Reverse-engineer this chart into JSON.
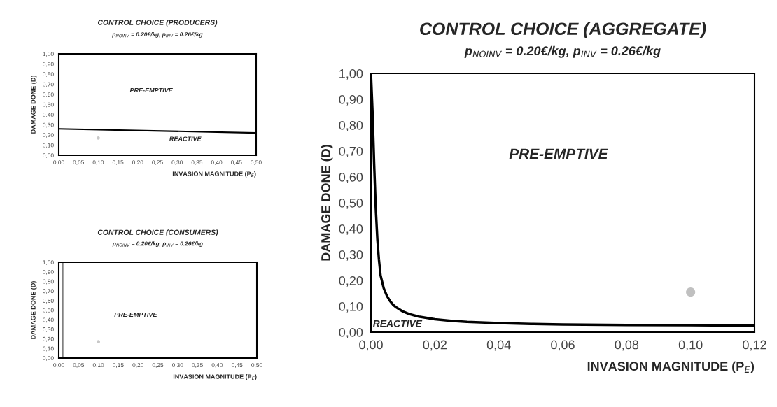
{
  "chart_data": [
    {
      "type": "line",
      "title": "CONTROL CHOICE (PRODUCERS)",
      "subtitle": "p$_{NOINV}$ = 0.20€/kg, p$_{INV}$ = 0.26€/kg",
      "xlabel": "INVASION MAGNITUDE (P$_{E}$)",
      "ylabel": "DAMAGE DONE (D)",
      "series": [
        {
          "color": "#000000",
          "x": [
            0.0,
            0.5
          ],
          "values": [
            0.26,
            0.22
          ]
        },
        {
          "type": "scatter",
          "color": "#c8c8c8",
          "x": [
            0.1
          ],
          "values": [
            0.17
          ]
        }
      ],
      "annotations": [
        "PRE-EMPTIVE",
        "REACTIVE"
      ],
      "xlim": [
        0,
        0.5
      ],
      "ylim": [
        0,
        1
      ],
      "xticks": [
        {
          "value": 0,
          "label": "0,00"
        },
        {
          "value": 0.05,
          "label": "0,05"
        },
        {
          "value": 0.1,
          "label": "0,10"
        },
        {
          "value": 0.15,
          "label": "0,15"
        },
        {
          "value": 0.2,
          "label": "0,20"
        },
        {
          "value": 0.25,
          "label": "0,25"
        },
        {
          "value": 0.3,
          "label": "0,30"
        },
        {
          "value": 0.35,
          "label": "0,35"
        },
        {
          "value": 0.4,
          "label": "0,40"
        },
        {
          "value": 0.45,
          "label": "0,45"
        },
        {
          "value": 0.5,
          "label": "0,50"
        }
      ],
      "yticks": [
        {
          "value": 0,
          "label": "0,00"
        },
        {
          "value": 0.1,
          "label": "0,10"
        },
        {
          "value": 0.2,
          "label": "0,20"
        },
        {
          "value": 0.3,
          "label": "0,30"
        },
        {
          "value": 0.4,
          "label": "0,40"
        },
        {
          "value": 0.5,
          "label": "0,50"
        },
        {
          "value": 0.6,
          "label": "0,60"
        },
        {
          "value": 0.7,
          "label": "0,70"
        },
        {
          "value": 0.8,
          "label": "0,80"
        },
        {
          "value": 0.9,
          "label": "0,90"
        },
        {
          "value": 1,
          "label": "1,00"
        }
      ],
      "grid": false
    },
    {
      "type": "line",
      "title": "CONTROL CHOICE (CONSUMERS)",
      "subtitle": "p$_{NOINV}$ = 0.20€/kg, p$_{INV}$ = 0.26€/kg",
      "xlabel": "INVASION MAGNITUDE (P$_{E}$)",
      "ylabel": "DAMAGE DONE (D)",
      "series": [
        {
          "color": "#808080",
          "x": [
            0.01,
            0.01
          ],
          "values": [
            0.0,
            1.0
          ]
        },
        {
          "type": "scatter",
          "color": "#c8c8c8",
          "x": [
            0.1
          ],
          "values": [
            0.17
          ]
        }
      ],
      "annotations": [
        "PRE-EMPTIVE"
      ],
      "xlim": [
        0,
        0.5
      ],
      "ylim": [
        0,
        1
      ],
      "xticks": [
        {
          "value": 0,
          "label": "0,00"
        },
        {
          "value": 0.05,
          "label": "0,05"
        },
        {
          "value": 0.1,
          "label": "0,10"
        },
        {
          "value": 0.15,
          "label": "0,15"
        },
        {
          "value": 0.2,
          "label": "0,20"
        },
        {
          "value": 0.25,
          "label": "0,25"
        },
        {
          "value": 0.3,
          "label": "0,30"
        },
        {
          "value": 0.35,
          "label": "0,35"
        },
        {
          "value": 0.4,
          "label": "0,40"
        },
        {
          "value": 0.45,
          "label": "0,45"
        },
        {
          "value": 0.5,
          "label": "0,50"
        }
      ],
      "yticks": [
        {
          "value": 0,
          "label": "0,00"
        },
        {
          "value": 0.1,
          "label": "0,10"
        },
        {
          "value": 0.2,
          "label": "0,20"
        },
        {
          "value": 0.3,
          "label": "0,30"
        },
        {
          "value": 0.4,
          "label": "0,40"
        },
        {
          "value": 0.5,
          "label": "0,50"
        },
        {
          "value": 0.6,
          "label": "0,60"
        },
        {
          "value": 0.7,
          "label": "0,70"
        },
        {
          "value": 0.8,
          "label": "0,80"
        },
        {
          "value": 0.9,
          "label": "0,90"
        },
        {
          "value": 1,
          "label": "1,00"
        }
      ],
      "grid": false
    },
    {
      "type": "line",
      "title": "CONTROL CHOICE (AGGREGATE)",
      "subtitle": "p$_{NOINV}$ = 0.20€/kg, p$_{INV}$ = 0.26€/kg",
      "xlabel": "INVASION MAGNITUDE (P$_{E}$)",
      "ylabel": "DAMAGE DONE (D)",
      "series": [
        {
          "color": "#000000",
          "x": [
            0.0,
            0.0005,
            0.001,
            0.0015,
            0.002,
            0.0025,
            0.003,
            0.004,
            0.005,
            0.006,
            0.007,
            0.008,
            0.01,
            0.012,
            0.015,
            0.02,
            0.025,
            0.03,
            0.04,
            0.05,
            0.06,
            0.08,
            0.1,
            0.12
          ],
          "values": [
            1.0,
            0.85,
            0.65,
            0.48,
            0.36,
            0.28,
            0.22,
            0.17,
            0.14,
            0.12,
            0.105,
            0.095,
            0.08,
            0.07,
            0.06,
            0.05,
            0.044,
            0.04,
            0.035,
            0.032,
            0.03,
            0.028,
            0.027,
            0.025
          ]
        },
        {
          "type": "scatter",
          "color": "#c0c0c0",
          "x": [
            0.1
          ],
          "values": [
            0.155
          ]
        }
      ],
      "annotations": [
        "PRE-EMPTIVE",
        "REACTIVE"
      ],
      "xlim": [
        0,
        0.12
      ],
      "ylim": [
        0,
        1
      ],
      "xticks": [
        {
          "value": 0,
          "label": "0,00"
        },
        {
          "value": 0.02,
          "label": "0,02"
        },
        {
          "value": 0.04,
          "label": "0,04"
        },
        {
          "value": 0.06,
          "label": "0,06"
        },
        {
          "value": 0.08,
          "label": "0,08"
        },
        {
          "value": 0.1,
          "label": "0,10"
        },
        {
          "value": 0.12,
          "label": "0,12"
        }
      ],
      "yticks": [
        {
          "value": 0,
          "label": "0,00"
        },
        {
          "value": 0.1,
          "label": "0,10"
        },
        {
          "value": 0.2,
          "label": "0,20"
        },
        {
          "value": 0.3,
          "label": "0,30"
        },
        {
          "value": 0.4,
          "label": "0,40"
        },
        {
          "value": 0.5,
          "label": "0,50"
        },
        {
          "value": 0.6,
          "label": "0,60"
        },
        {
          "value": 0.7,
          "label": "0,70"
        },
        {
          "value": 0.8,
          "label": "0,80"
        },
        {
          "value": 0.9,
          "label": "0,90"
        },
        {
          "value": 1,
          "label": "1,00"
        }
      ],
      "grid": false
    }
  ]
}
